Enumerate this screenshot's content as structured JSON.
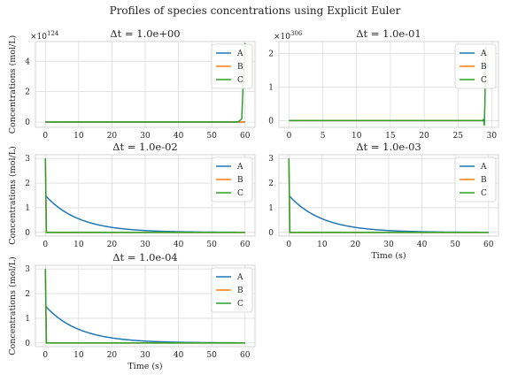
{
  "figure_title": "Profiles of species concentrations using Explicit Euler",
  "legend_labels": [
    "A",
    "B",
    "C"
  ],
  "colors": {
    "A": "#1f77b4",
    "B": "#ff7f0e",
    "C": "#2ca02c",
    "grid": "#dcdcdc",
    "frame": "#cccccc"
  },
  "chart_data": [
    {
      "type": "line",
      "title": "Δt = 1.0e+00",
      "xlabel": "",
      "ylabel": "Concentrations (mol/L)",
      "xlim": [
        -3,
        63
      ],
      "ylim": [
        -0.35,
        5.3
      ],
      "x_ticks": [
        0,
        10,
        20,
        30,
        40,
        50,
        60
      ],
      "y_ticks": [
        0,
        2,
        4
      ],
      "y_multiplier": "×10^124",
      "legend_position": "top-right",
      "grid": true,
      "series": [
        {
          "name": "A",
          "x": [
            0,
            60
          ],
          "y": [
            0,
            0
          ]
        },
        {
          "name": "B",
          "x": [
            0,
            60
          ],
          "y": [
            0,
            0
          ]
        },
        {
          "name": "C",
          "x": [
            0,
            57,
            58,
            59,
            60
          ],
          "y": [
            0,
            0,
            0.02,
            0.2,
            5.2
          ]
        }
      ]
    },
    {
      "type": "line",
      "title": "Δt = 1.0e-01",
      "xlabel": "",
      "ylabel": "",
      "xlim": [
        -1.5,
        31
      ],
      "ylim": [
        -0.2,
        2.35
      ],
      "x_ticks": [
        0,
        5,
        10,
        15,
        20,
        25,
        30
      ],
      "y_ticks": [
        0,
        1,
        2
      ],
      "y_multiplier": "×10^306",
      "legend_position": "top-right",
      "grid": true,
      "series": [
        {
          "name": "A",
          "x": [
            0,
            29
          ],
          "y": [
            0,
            0
          ]
        },
        {
          "name": "B",
          "x": [
            0,
            29
          ],
          "y": [
            0,
            0
          ]
        },
        {
          "name": "C",
          "x": [
            0,
            28.7,
            28.8,
            28.9,
            29.0,
            29.1
          ],
          "y": [
            0,
            0,
            0.05,
            -0.15,
            0.6,
            2.2
          ]
        }
      ]
    },
    {
      "type": "line",
      "title": "Δt = 1.0e-02",
      "xlabel": "",
      "ylabel": "Concentrations (mol/L)",
      "xlim": [
        -3,
        63
      ],
      "ylim": [
        -0.15,
        3.15
      ],
      "x_ticks": [
        0,
        10,
        20,
        30,
        40,
        50,
        60
      ],
      "y_ticks": [
        0,
        1,
        2,
        3
      ],
      "y_multiplier": "",
      "legend_position": "top-right",
      "grid": true,
      "series": [
        {
          "name": "A",
          "decay": {
            "start": 0,
            "end": 60,
            "y0": 1.5,
            "k": 0.1
          }
        },
        {
          "name": "B",
          "x": [
            0,
            0.3,
            60
          ],
          "y": [
            3.0,
            0,
            0
          ]
        },
        {
          "name": "C",
          "x": [
            0,
            0.3,
            60
          ],
          "y": [
            3.0,
            0,
            0
          ]
        }
      ]
    },
    {
      "type": "line",
      "title": "Δt = 1.0e-03",
      "xlabel": "Time (s)",
      "ylabel": "",
      "xlim": [
        -3,
        63
      ],
      "ylim": [
        -0.15,
        3.15
      ],
      "x_ticks": [
        0,
        10,
        20,
        30,
        40,
        50,
        60
      ],
      "y_ticks": [
        0,
        1,
        2,
        3
      ],
      "y_multiplier": "",
      "legend_position": "top-right",
      "grid": true,
      "series": [
        {
          "name": "A",
          "decay": {
            "start": 0,
            "end": 60,
            "y0": 1.5,
            "k": 0.1
          }
        },
        {
          "name": "B",
          "x": [
            0,
            0.3,
            60
          ],
          "y": [
            3.0,
            0,
            0
          ]
        },
        {
          "name": "C",
          "x": [
            0,
            0.3,
            60
          ],
          "y": [
            3.0,
            0,
            0
          ]
        }
      ]
    },
    {
      "type": "line",
      "title": "Δt = 1.0e-04",
      "xlabel": "Time (s)",
      "ylabel": "Concentrations (mol/L)",
      "xlim": [
        -3,
        63
      ],
      "ylim": [
        -0.15,
        3.15
      ],
      "x_ticks": [
        0,
        10,
        20,
        30,
        40,
        50,
        60
      ],
      "y_ticks": [
        0,
        1,
        2,
        3
      ],
      "y_multiplier": "",
      "legend_position": "top-right",
      "grid": true,
      "series": [
        {
          "name": "A",
          "decay": {
            "start": 0,
            "end": 60,
            "y0": 1.5,
            "k": 0.1
          }
        },
        {
          "name": "B",
          "x": [
            0,
            0.3,
            60
          ],
          "y": [
            3.0,
            0,
            0
          ]
        },
        {
          "name": "C",
          "x": [
            0,
            0.3,
            60
          ],
          "y": [
            3.0,
            0,
            0
          ]
        }
      ]
    }
  ]
}
